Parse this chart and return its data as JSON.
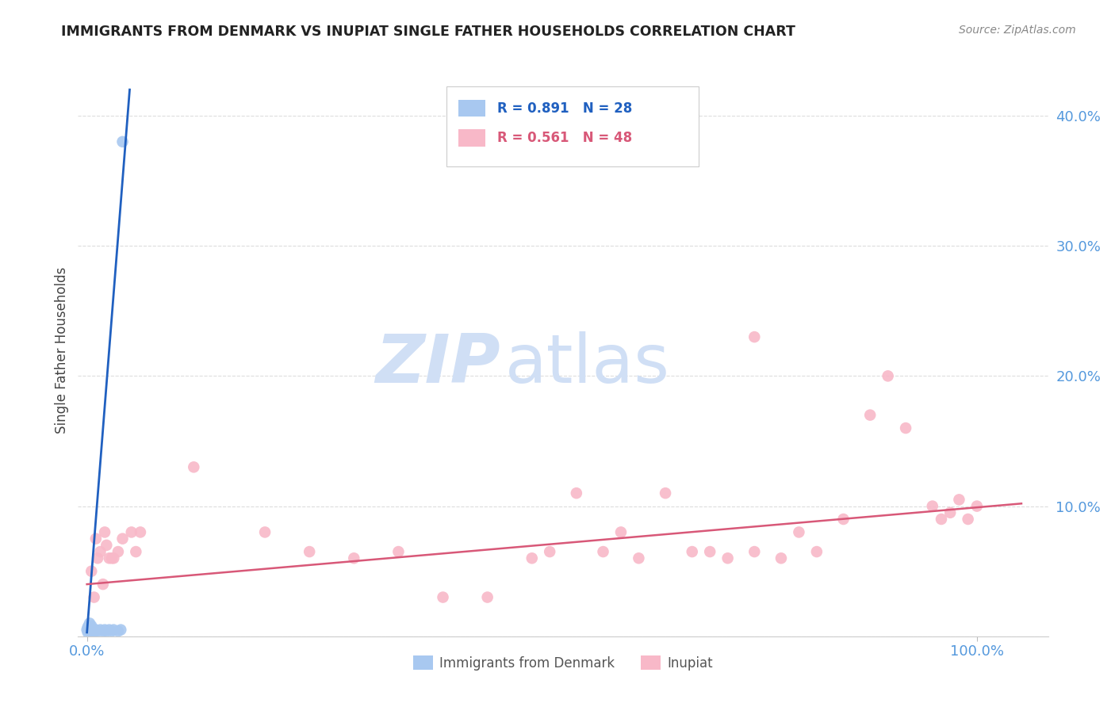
{
  "title": "IMMIGRANTS FROM DENMARK VS INUPIAT SINGLE FATHER HOUSEHOLDS CORRELATION CHART",
  "source": "Source: ZipAtlas.com",
  "ylabel": "Single Father Households",
  "ylim": [
    0.0,
    0.44
  ],
  "xlim": [
    -0.01,
    1.08
  ],
  "ytick_vals": [
    0.0,
    0.1,
    0.2,
    0.3,
    0.4
  ],
  "ytick_labels": [
    "",
    "10.0%",
    "20.0%",
    "30.0%",
    "40.0%"
  ],
  "xtick_vals": [
    0.0,
    1.0
  ],
  "xtick_labels": [
    "0.0%",
    "100.0%"
  ],
  "blue_scatter_x": [
    0.0,
    0.001,
    0.001,
    0.002,
    0.002,
    0.003,
    0.003,
    0.003,
    0.004,
    0.004,
    0.005,
    0.005,
    0.006,
    0.007,
    0.008,
    0.009,
    0.01,
    0.012,
    0.015,
    0.018,
    0.02,
    0.022,
    0.025,
    0.028,
    0.03,
    0.035,
    0.038,
    0.04
  ],
  "blue_scatter_y": [
    0.005,
    0.003,
    0.007,
    0.005,
    0.008,
    0.004,
    0.006,
    0.01,
    0.005,
    0.007,
    0.004,
    0.008,
    0.005,
    0.004,
    0.005,
    0.004,
    0.005,
    0.004,
    0.005,
    0.004,
    0.005,
    0.004,
    0.005,
    0.004,
    0.005,
    0.004,
    0.005,
    0.38
  ],
  "blue_line_x0": 0.0,
  "blue_line_x1": 0.048,
  "blue_line_y0": 0.003,
  "blue_line_y1": 0.42,
  "pink_scatter_x": [
    0.005,
    0.008,
    0.01,
    0.012,
    0.015,
    0.018,
    0.02,
    0.022,
    0.025,
    0.028,
    0.03,
    0.035,
    0.04,
    0.05,
    0.055,
    0.06,
    0.12,
    0.2,
    0.25,
    0.3,
    0.35,
    0.4,
    0.45,
    0.5,
    0.52,
    0.55,
    0.58,
    0.6,
    0.62,
    0.65,
    0.68,
    0.7,
    0.72,
    0.75,
    0.78,
    0.8,
    0.82,
    0.85,
    0.88,
    0.9,
    0.92,
    0.95,
    0.96,
    0.97,
    0.98,
    0.99,
    1.0,
    0.75
  ],
  "pink_scatter_y": [
    0.05,
    0.03,
    0.075,
    0.06,
    0.065,
    0.04,
    0.08,
    0.07,
    0.06,
    0.06,
    0.06,
    0.065,
    0.075,
    0.08,
    0.065,
    0.08,
    0.13,
    0.08,
    0.065,
    0.06,
    0.065,
    0.03,
    0.03,
    0.06,
    0.065,
    0.11,
    0.065,
    0.08,
    0.06,
    0.11,
    0.065,
    0.065,
    0.06,
    0.065,
    0.06,
    0.08,
    0.065,
    0.09,
    0.17,
    0.2,
    0.16,
    0.1,
    0.09,
    0.095,
    0.105,
    0.09,
    0.1,
    0.23
  ],
  "pink_line_x0": 0.0,
  "pink_line_x1": 1.05,
  "pink_line_y0": 0.04,
  "pink_line_y1": 0.102,
  "blue_color": "#A8C8F0",
  "blue_line_color": "#2060C0",
  "pink_color": "#F8B8C8",
  "pink_line_color": "#D85878",
  "legend_blue_r": "R = 0.891",
  "legend_blue_n": "N = 28",
  "legend_pink_r": "R = 0.561",
  "legend_pink_n": "N = 48",
  "watermark_zip": "ZIP",
  "watermark_atlas": "atlas",
  "watermark_color": "#D0DFF5",
  "background_color": "#FFFFFF",
  "grid_color": "#DDDDDD",
  "title_color": "#222222",
  "tick_color": "#5599DD",
  "ylabel_color": "#444444",
  "source_color": "#888888"
}
